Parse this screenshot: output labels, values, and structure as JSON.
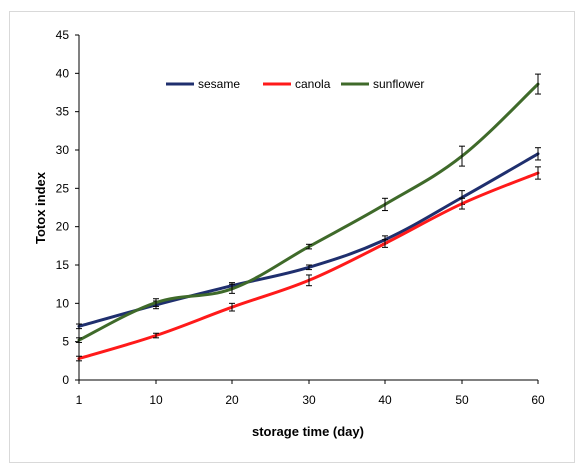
{
  "chart_data": {
    "type": "line",
    "title": "",
    "xlabel": "storage time (day)",
    "ylabel": "Totox index",
    "x": [
      1,
      10,
      20,
      30,
      40,
      50,
      60
    ],
    "x_tick_labels": [
      "1",
      "10",
      "20",
      "30",
      "40",
      "50",
      "60"
    ],
    "ylim": [
      0,
      45
    ],
    "y_ticks": [
      0,
      5,
      10,
      15,
      20,
      25,
      30,
      35,
      40,
      45
    ],
    "y_tick_labels": [
      "0",
      "5",
      "10",
      "15",
      "20",
      "25",
      "30",
      "35",
      "40",
      "45"
    ],
    "grid": false,
    "legend_position": "top-center",
    "series": [
      {
        "name": "sesame",
        "color": "#1f2f6e",
        "values": [
          7.0,
          9.8,
          12.3,
          14.7,
          18.3,
          23.8,
          29.5
        ],
        "errors": [
          0.3,
          0.5,
          0.4,
          0.3,
          0.5,
          0.9,
          0.8
        ]
      },
      {
        "name": "canola",
        "color": "#ff1a1a",
        "values": [
          2.8,
          5.8,
          9.5,
          13.0,
          17.8,
          23.0,
          27.0
        ],
        "errors": [
          0.3,
          0.3,
          0.5,
          0.7,
          0.5,
          0.7,
          0.8
        ]
      },
      {
        "name": "sunflower",
        "color": "#3f6a2a",
        "values": [
          5.2,
          10.1,
          11.9,
          17.4,
          22.9,
          29.2,
          38.6
        ],
        "errors": [
          0.3,
          0.5,
          0.6,
          0.3,
          0.8,
          1.3,
          1.3
        ]
      }
    ]
  }
}
